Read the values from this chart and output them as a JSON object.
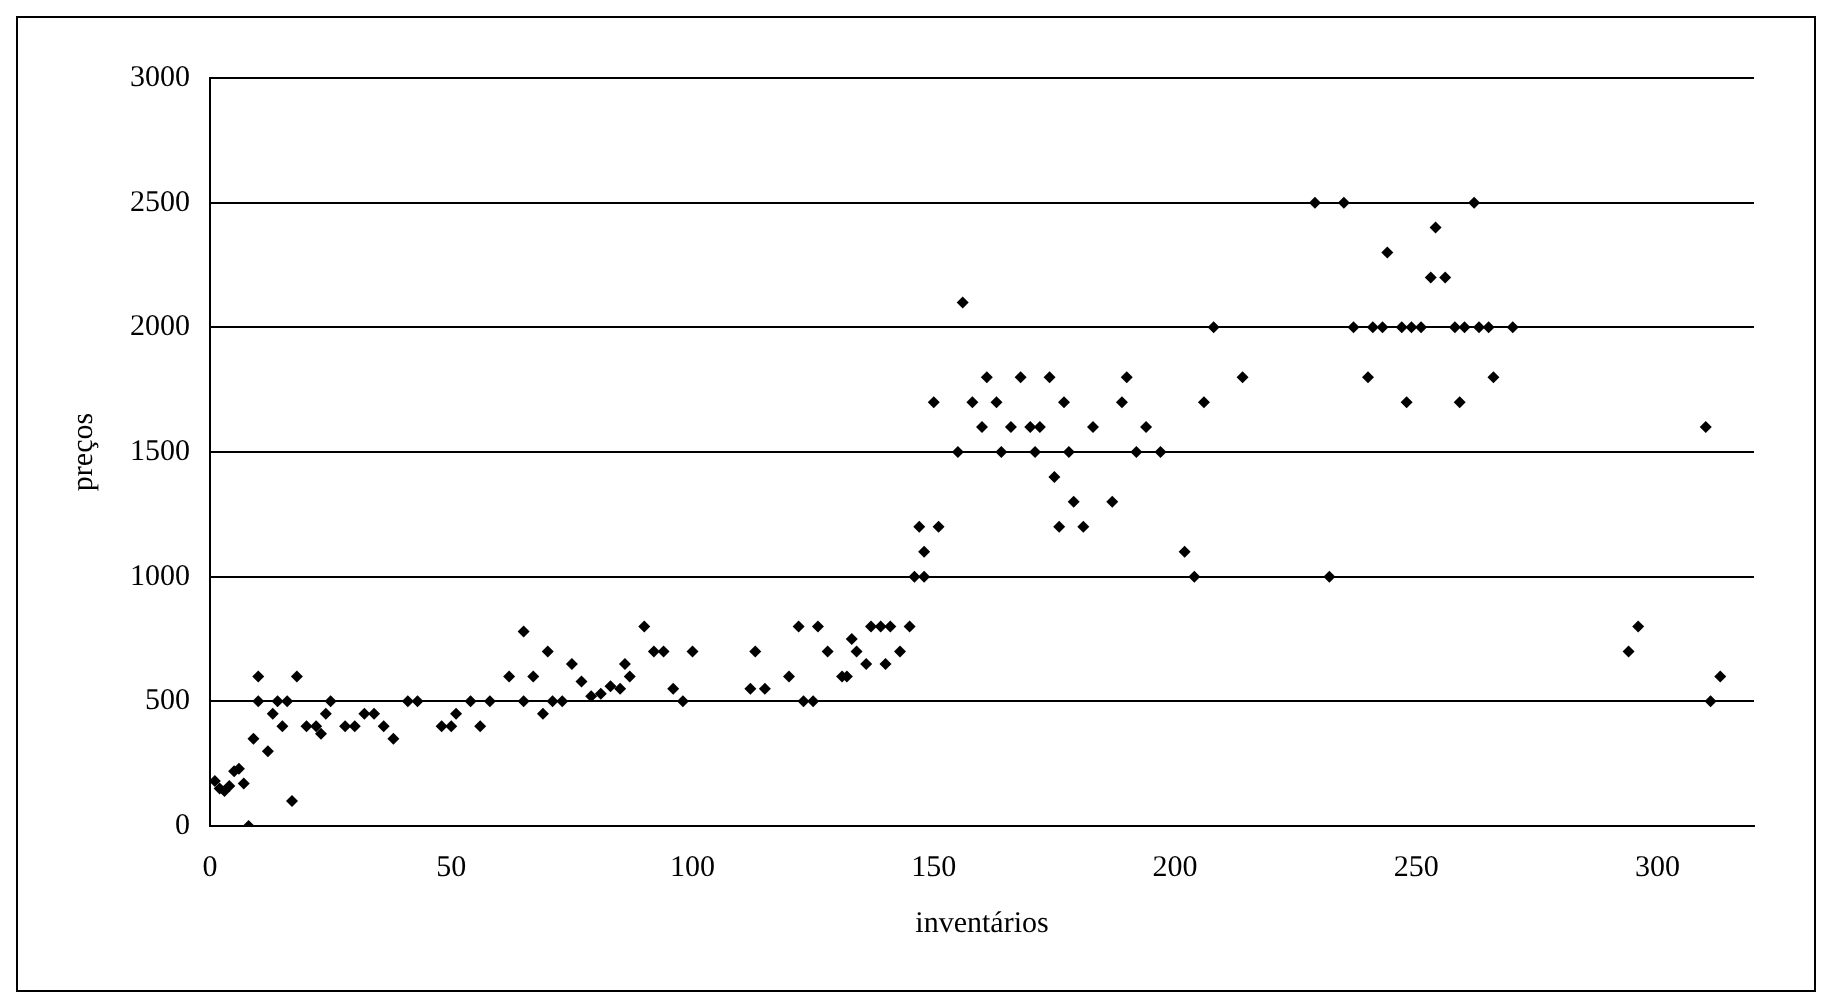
{
  "chart_data": {
    "type": "scatter",
    "xlabel": "inventários",
    "ylabel": "preços",
    "xlim": [
      0,
      320
    ],
    "xticks": [
      0,
      50,
      100,
      150,
      200,
      250,
      300
    ],
    "ylim": [
      0,
      3000
    ],
    "yticks": [
      0,
      500,
      1000,
      1500,
      2000,
      2500,
      3000
    ],
    "grid": "y",
    "legend": false,
    "marker": "diamond",
    "series": [
      {
        "color": "#000000",
        "x": [
          1,
          2,
          3,
          4,
          5,
          6,
          7,
          8,
          9,
          10,
          10,
          12,
          13,
          14,
          15,
          16,
          17,
          18,
          20,
          22,
          23,
          24,
          25,
          28,
          30,
          32,
          34,
          36,
          38,
          41,
          43,
          48,
          50,
          51,
          54,
          56,
          58,
          62,
          65,
          65,
          67,
          69,
          70,
          71,
          73,
          75,
          77,
          79,
          81,
          83,
          85,
          86,
          87,
          90,
          92,
          94,
          96,
          98,
          100,
          112,
          113,
          115,
          120,
          122,
          123,
          125,
          126,
          128,
          131,
          132,
          133,
          134,
          136,
          137,
          139,
          140,
          141,
          143,
          145,
          146,
          147,
          148,
          148,
          150,
          151,
          155,
          156,
          158,
          160,
          161,
          163,
          164,
          166,
          168,
          170,
          171,
          172,
          174,
          175,
          176,
          177,
          178,
          179,
          181,
          183,
          187,
          189,
          190,
          192,
          194,
          197,
          202,
          204,
          206,
          208,
          214,
          229,
          232,
          235,
          237,
          240,
          241,
          243,
          244,
          247,
          248,
          249,
          251,
          253,
          254,
          256,
          258,
          259,
          260,
          262,
          263,
          265,
          266,
          270,
          294,
          296,
          310,
          311,
          313
        ],
        "values": [
          180,
          150,
          140,
          160,
          220,
          230,
          170,
          0,
          350,
          600,
          500,
          300,
          450,
          500,
          400,
          500,
          100,
          600,
          400,
          400,
          370,
          450,
          500,
          400,
          400,
          450,
          450,
          400,
          350,
          500,
          500,
          400,
          400,
          450,
          500,
          400,
          500,
          600,
          500,
          780,
          600,
          450,
          700,
          500,
          500,
          650,
          580,
          520,
          530,
          560,
          550,
          650,
          600,
          800,
          700,
          700,
          550,
          500,
          700,
          550,
          700,
          550,
          600,
          800,
          500,
          500,
          800,
          700,
          600,
          600,
          750,
          700,
          650,
          800,
          800,
          650,
          800,
          700,
          800,
          1000,
          1200,
          1000,
          1100,
          1700,
          1200,
          1500,
          2100,
          1700,
          1600,
          1800,
          1700,
          1500,
          1600,
          1800,
          1600,
          1500,
          1600,
          1800,
          1400,
          1200,
          1700,
          1500,
          1300,
          1200,
          1600,
          1300,
          1700,
          1800,
          1500,
          1600,
          1500,
          1100,
          1000,
          1700,
          2000,
          1800,
          2500,
          1000,
          2500,
          2000,
          1800,
          2000,
          2000,
          2300,
          2000,
          1700,
          2000,
          2000,
          2200,
          2400,
          2200,
          2000,
          1700,
          2000,
          2500,
          2000,
          2000,
          1800,
          2000,
          700,
          800,
          1600,
          500,
          600
        ]
      }
    ]
  }
}
